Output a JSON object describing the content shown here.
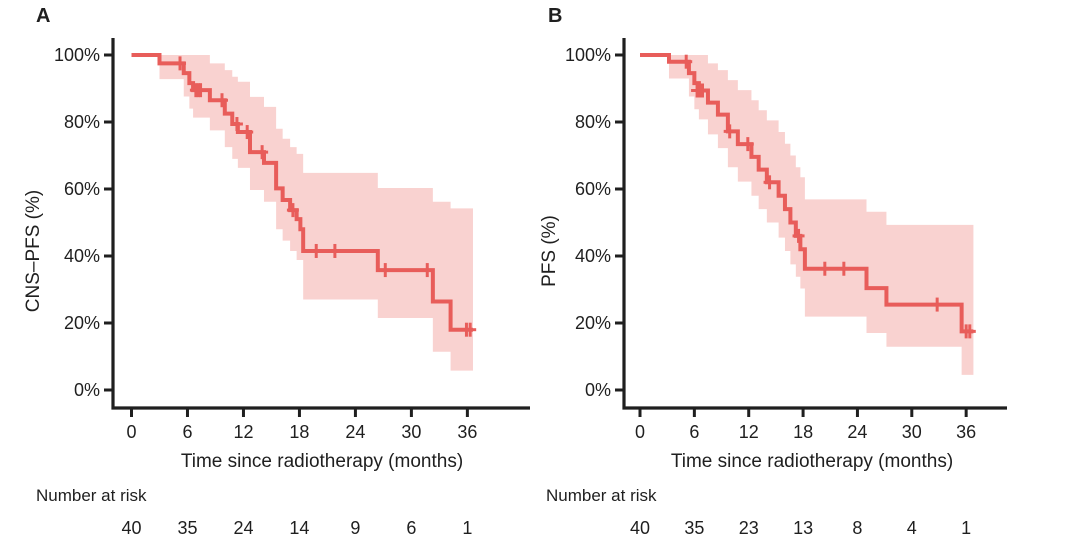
{
  "figure": {
    "background": "#ffffff",
    "panels": [
      {
        "letter": "A",
        "ylabel": "CNS–PFS (%)",
        "xlabel": "Time since radiotherapy (months)",
        "risk_label": "Number at risk"
      },
      {
        "letter": "B",
        "ylabel": "PFS (%)",
        "xlabel": "Time since radiotherapy (months)",
        "risk_label": "Number at risk"
      }
    ]
  },
  "chart_data": [
    {
      "type": "line",
      "subtype": "kaplan-meier-step",
      "title": "A",
      "xlabel": "Time since radiotherapy (months)",
      "ylabel": "CNS–PFS (%)",
      "xlim": [
        0,
        42
      ],
      "ylim": [
        0,
        100
      ],
      "grid": false,
      "legend": "none",
      "xticks": [
        0,
        6,
        12,
        18,
        24,
        30,
        36
      ],
      "yticks": [
        0,
        20,
        40,
        60,
        80,
        100
      ],
      "ytick_labels": [
        "0%",
        "20%",
        "40%",
        "60%",
        "80%",
        "100%"
      ],
      "line_color": "#e85d5a",
      "ci_color": "#f9d2d0",
      "axis_color": "#1f1f1f",
      "t_end": 36.6,
      "series": [
        {
          "name": "CNS-PFS survival estimate",
          "steps": [
            [
              0,
              100
            ],
            [
              3,
              97.5
            ],
            [
              5.6,
              94.6
            ],
            [
              6.2,
              91.6
            ],
            [
              6.6,
              89.5
            ],
            [
              8.4,
              86.5
            ],
            [
              10,
              82.5
            ],
            [
              10.8,
              79.4
            ],
            [
              11.4,
              77
            ],
            [
              12.7,
              71
            ],
            [
              14.2,
              67.8
            ],
            [
              15.5,
              60.2
            ],
            [
              16.2,
              56.7
            ],
            [
              17,
              53.7
            ],
            [
              17.7,
              51
            ],
            [
              18.1,
              48
            ],
            [
              18.4,
              41.5
            ],
            [
              26.4,
              35.8
            ],
            [
              32.3,
              26.4
            ],
            [
              34.2,
              18
            ]
          ],
          "censors": [
            [
              5.2,
              97.5
            ],
            [
              6.9,
              89.5
            ],
            [
              7.15,
              89.5
            ],
            [
              7.4,
              89.5
            ],
            [
              9.7,
              86.5
            ],
            [
              11.3,
              79.4
            ],
            [
              12.4,
              77
            ],
            [
              14.0,
              71
            ],
            [
              17.3,
              53.7
            ],
            [
              19.8,
              41.5
            ],
            [
              21.8,
              41.5
            ],
            [
              27.2,
              35.8
            ],
            [
              31.7,
              35.8
            ],
            [
              35.9,
              18
            ],
            [
              36.3,
              18
            ]
          ],
          "ci_upper": [
            [
              3,
              100
            ],
            [
              8.4,
              97.5
            ],
            [
              10,
              95.5
            ],
            [
              10.8,
              93.5
            ],
            [
              11.4,
              92
            ],
            [
              12.7,
              87.5
            ],
            [
              14.2,
              84.5
            ],
            [
              15.5,
              78
            ],
            [
              16.2,
              75
            ],
            [
              17,
              72.5
            ],
            [
              17.7,
              70.5
            ],
            [
              18.4,
              64.8
            ],
            [
              26.4,
              60.3
            ],
            [
              32.3,
              56.2
            ],
            [
              34.2,
              54.2
            ]
          ],
          "ci_lower": [
            [
              3,
              92.8
            ],
            [
              5.6,
              87.6
            ],
            [
              6.2,
              84
            ],
            [
              6.6,
              81.3
            ],
            [
              8.4,
              77.5
            ],
            [
              10,
              72.5
            ],
            [
              10.8,
              69
            ],
            [
              11.4,
              66.3
            ],
            [
              12.7,
              59.7
            ],
            [
              14.2,
              56.2
            ],
            [
              15.5,
              48
            ],
            [
              16.2,
              44.6
            ],
            [
              17,
              41.5
            ],
            [
              17.7,
              38.8
            ],
            [
              18.4,
              27
            ],
            [
              26.4,
              21.5
            ],
            [
              32.3,
              11.4
            ],
            [
              34.2,
              5.8
            ]
          ]
        }
      ],
      "number_at_risk": {
        "label": "Number at risk",
        "times": [
          0,
          6,
          12,
          18,
          24,
          30,
          36
        ],
        "counts": [
          40,
          35,
          24,
          14,
          9,
          6,
          1
        ]
      }
    },
    {
      "type": "line",
      "subtype": "kaplan-meier-step",
      "title": "B",
      "xlabel": "Time since radiotherapy (months)",
      "ylabel": "PFS (%)",
      "xlim": [
        0,
        42
      ],
      "ylim": [
        0,
        100
      ],
      "grid": false,
      "legend": "none",
      "xticks": [
        0,
        6,
        12,
        18,
        24,
        30,
        36
      ],
      "yticks": [
        0,
        20,
        40,
        60,
        80,
        100
      ],
      "ytick_labels": [
        "0%",
        "20%",
        "40%",
        "60%",
        "80%",
        "100%"
      ],
      "line_color": "#e85d5a",
      "ci_color": "#f9d2d0",
      "axis_color": "#1f1f1f",
      "t_end": 36.8,
      "series": [
        {
          "name": "PFS survival estimate",
          "steps": [
            [
              0,
              100
            ],
            [
              3.2,
              98
            ],
            [
              5.4,
              94.6
            ],
            [
              6.0,
              91.6
            ],
            [
              6.5,
              89.4
            ],
            [
              7.5,
              85.8
            ],
            [
              8.6,
              82.2
            ],
            [
              9.7,
              77.2
            ],
            [
              10.8,
              73.4
            ],
            [
              12.3,
              69.6
            ],
            [
              13.1,
              65.8
            ],
            [
              14.0,
              62
            ],
            [
              15.3,
              58
            ],
            [
              16.0,
              54
            ],
            [
              16.6,
              50
            ],
            [
              17.2,
              46
            ],
            [
              17.7,
              42
            ],
            [
              18.2,
              36.2
            ],
            [
              25.0,
              30.4
            ],
            [
              27.2,
              25.5
            ],
            [
              35.5,
              17.5
            ]
          ],
          "censors": [
            [
              5.1,
              98
            ],
            [
              6.3,
              89.4
            ],
            [
              6.6,
              89.4
            ],
            [
              6.9,
              89.4
            ],
            [
              9.9,
              77.2
            ],
            [
              11.9,
              73.4
            ],
            [
              14.3,
              62
            ],
            [
              17.5,
              46
            ],
            [
              20.4,
              36.2
            ],
            [
              22.5,
              36.2
            ],
            [
              32.8,
              25.5
            ],
            [
              36.0,
              17.5
            ],
            [
              36.4,
              17.5
            ]
          ],
          "ci_upper": [
            [
              3.2,
              100
            ],
            [
              7.5,
              97.5
            ],
            [
              8.6,
              95.5
            ],
            [
              9.7,
              92.5
            ],
            [
              10.8,
              89.5
            ],
            [
              12.3,
              86.5
            ],
            [
              13.1,
              83.5
            ],
            [
              14.0,
              80.5
            ],
            [
              15.3,
              77
            ],
            [
              16.0,
              73.5
            ],
            [
              16.6,
              70
            ],
            [
              17.2,
              66.5
            ],
            [
              17.7,
              63.5
            ],
            [
              18.2,
              56.9
            ],
            [
              25.0,
              53.2
            ],
            [
              27.2,
              49.3
            ]
          ],
          "ci_lower": [
            [
              3.2,
              93
            ],
            [
              5.4,
              87.6
            ],
            [
              6.0,
              83.8
            ],
            [
              6.5,
              80.8
            ],
            [
              7.5,
              76.3
            ],
            [
              8.6,
              72.2
            ],
            [
              9.7,
              66.5
            ],
            [
              10.8,
              62.2
            ],
            [
              12.3,
              58
            ],
            [
              13.1,
              54
            ],
            [
              14.0,
              50
            ],
            [
              15.3,
              45.5
            ],
            [
              16.0,
              41.5
            ],
            [
              16.6,
              37.5
            ],
            [
              17.2,
              33.8
            ],
            [
              17.7,
              30.3
            ],
            [
              18.2,
              21.9
            ],
            [
              25.0,
              17
            ],
            [
              27.2,
              12.9
            ],
            [
              35.5,
              4.5
            ]
          ]
        }
      ],
      "number_at_risk": {
        "label": "Number at risk",
        "times": [
          0,
          6,
          12,
          18,
          24,
          30,
          36
        ],
        "counts": [
          40,
          35,
          23,
          13,
          8,
          4,
          1
        ]
      }
    }
  ]
}
